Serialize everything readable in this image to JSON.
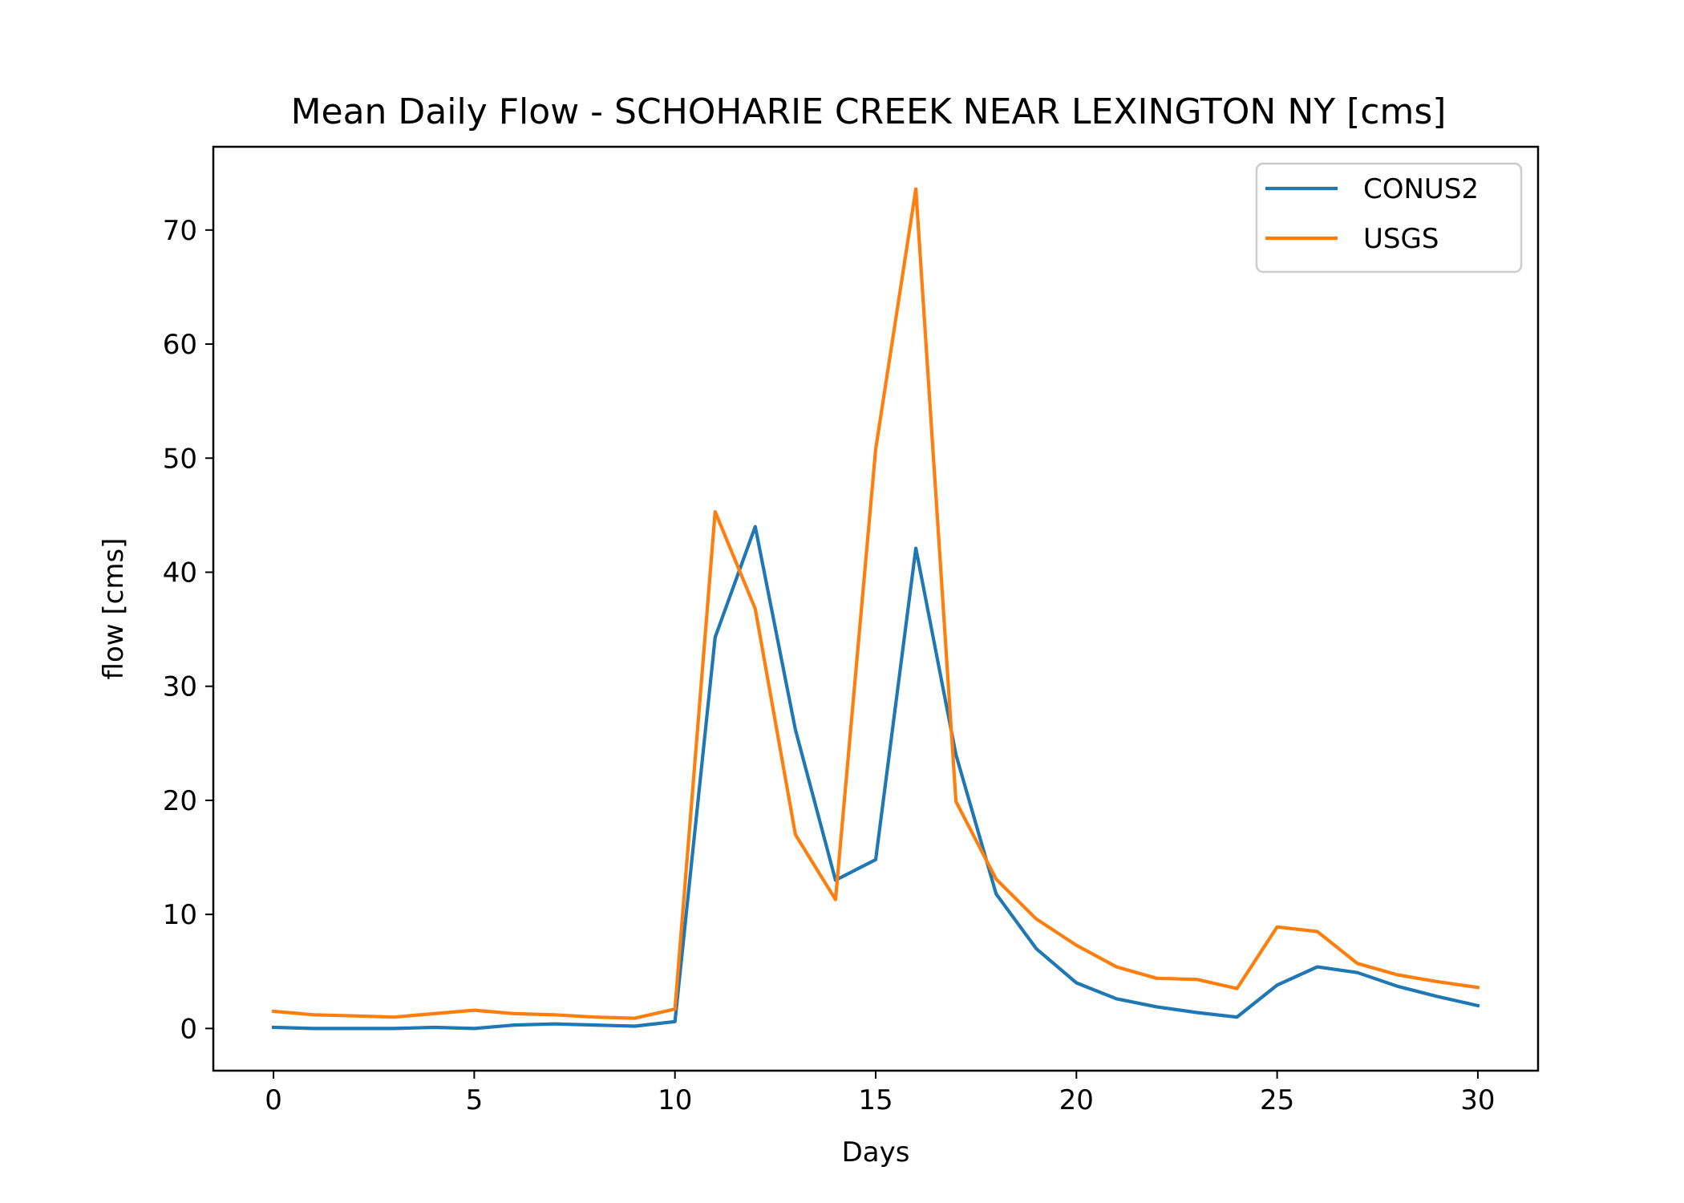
{
  "chart_data": {
    "type": "line",
    "title": "Mean Daily Flow - SCHOHARIE CREEK NEAR LEXINGTON NY [cms]",
    "xlabel": "Days",
    "ylabel": "flow [cms]",
    "xlim": [
      -1.5,
      31.5
    ],
    "ylim": [
      -3.7,
      77.3
    ],
    "xticks": [
      0,
      5,
      10,
      15,
      20,
      25,
      30
    ],
    "yticks": [
      0,
      10,
      20,
      30,
      40,
      50,
      60,
      70
    ],
    "grid": false,
    "legend_position": "top-right",
    "x": [
      0,
      1,
      2,
      3,
      4,
      5,
      6,
      7,
      8,
      9,
      10,
      11,
      12,
      13,
      14,
      15,
      16,
      17,
      18,
      19,
      20,
      21,
      22,
      23,
      24,
      25,
      26,
      27,
      28,
      29,
      30
    ],
    "series": [
      {
        "name": "CONUS2",
        "color": "#1f77b4",
        "values": [
          0.1,
          0.0,
          0.0,
          0.0,
          0.1,
          0.0,
          0.3,
          0.4,
          0.3,
          0.2,
          0.6,
          34.3,
          44.0,
          26.2,
          13.0,
          14.8,
          42.1,
          24.0,
          11.8,
          7.0,
          4.0,
          2.6,
          1.9,
          1.4,
          1.0,
          3.8,
          5.4,
          4.9,
          3.7,
          2.8,
          2.0
        ]
      },
      {
        "name": "USGS",
        "color": "#ff7f0e",
        "values": [
          1.5,
          1.2,
          1.1,
          1.0,
          1.3,
          1.6,
          1.3,
          1.2,
          1.0,
          0.9,
          1.7,
          45.3,
          36.8,
          17.0,
          11.3,
          50.8,
          73.6,
          19.9,
          13.1,
          9.6,
          7.3,
          5.4,
          4.4,
          4.3,
          3.5,
          8.9,
          8.5,
          5.7,
          4.7,
          4.1,
          3.6
        ]
      }
    ]
  }
}
